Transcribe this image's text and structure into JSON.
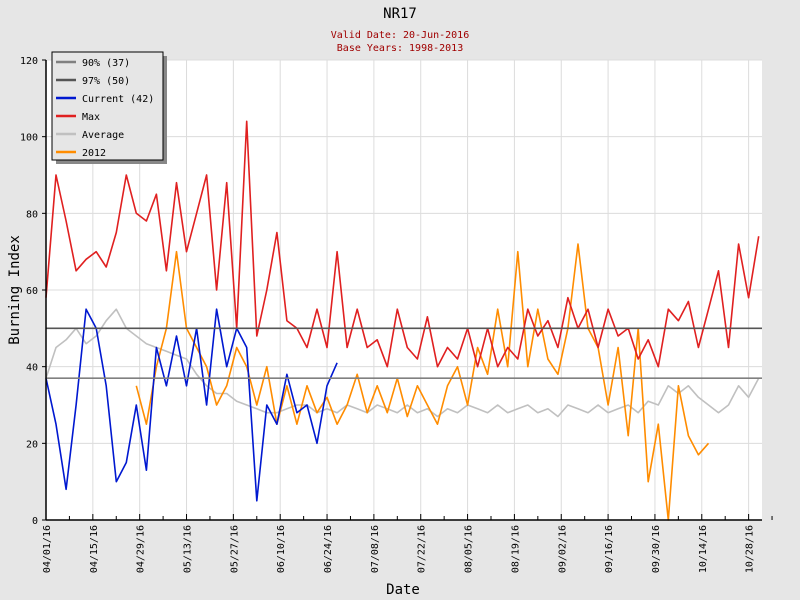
{
  "chart_data": {
    "type": "line",
    "title": "NR17",
    "subtitle_lines": [
      "Valid Date: 20-Jun-2016",
      "Base Years: 1998-2013"
    ],
    "xlabel": "Date",
    "ylabel": "Burning Index",
    "ylim": [
      0,
      120
    ],
    "yticks": [
      0,
      20,
      40,
      60,
      80,
      100,
      120
    ],
    "x_start": "04/01/16",
    "x_range_days": [
      0,
      214
    ],
    "xticks": [
      {
        "day": 0,
        "label": "04/01/16"
      },
      {
        "day": 14,
        "label": "04/15/16"
      },
      {
        "day": 28,
        "label": "04/29/16"
      },
      {
        "day": 42,
        "label": "05/13/16"
      },
      {
        "day": 56,
        "label": "05/27/16"
      },
      {
        "day": 70,
        "label": "06/10/16"
      },
      {
        "day": 84,
        "label": "06/24/16"
      },
      {
        "day": 98,
        "label": "07/08/16"
      },
      {
        "day": 112,
        "label": "07/22/16"
      },
      {
        "day": 126,
        "label": "08/05/16"
      },
      {
        "day": 140,
        "label": "08/19/16"
      },
      {
        "day": 154,
        "label": "09/02/16"
      },
      {
        "day": 168,
        "label": "09/16/16"
      },
      {
        "day": 182,
        "label": "09/30/16"
      },
      {
        "day": 196,
        "label": "10/14/16"
      },
      {
        "day": 210,
        "label": "10/28/16"
      }
    ],
    "grid": true,
    "legend_position": "top-left",
    "thresholds": [
      {
        "name": "90% (37)",
        "value": 37,
        "color": "#808080"
      },
      {
        "name": "97% (50)",
        "value": 50,
        "color": "#555555"
      }
    ],
    "series": [
      {
        "name": "Max",
        "color": "#e02020",
        "start_day": 0,
        "step_days": 3,
        "values": [
          58,
          90,
          78,
          65,
          68,
          70,
          66,
          75,
          90,
          80,
          78,
          85,
          65,
          88,
          70,
          80,
          90,
          60,
          88,
          50,
          104,
          48,
          60,
          75,
          52,
          50,
          45,
          55,
          45,
          70,
          45,
          55,
          45,
          47,
          40,
          55,
          45,
          42,
          53,
          40,
          45,
          42,
          50,
          40,
          50,
          40,
          45,
          42,
          55,
          48,
          52,
          45,
          58,
          50,
          55,
          45,
          55,
          48,
          50,
          42,
          47,
          40,
          55,
          52,
          57,
          45,
          55,
          65,
          45,
          72,
          58,
          74
        ]
      },
      {
        "name": "Average",
        "color": "#c0c0c0",
        "start_day": 0,
        "step_days": 3,
        "values": [
          37,
          45,
          47,
          50,
          46,
          48,
          52,
          55,
          50,
          48,
          46,
          45,
          44,
          43,
          42,
          38,
          35,
          33,
          33,
          31,
          30,
          29,
          28,
          28,
          29,
          30,
          30,
          28,
          29,
          28,
          30,
          29,
          28,
          30,
          29,
          28,
          30,
          28,
          29,
          27,
          29,
          28,
          30,
          29,
          28,
          30,
          28,
          29,
          30,
          28,
          29,
          27,
          30,
          29,
          28,
          30,
          28,
          29,
          30,
          28,
          31,
          30,
          35,
          33,
          35,
          32,
          30,
          28,
          30,
          35,
          32,
          37
        ]
      },
      {
        "name": "2012",
        "color": "#ff8c00",
        "start_day": 27,
        "step_days": 3,
        "values": [
          35,
          25,
          40,
          50,
          70,
          50,
          45,
          40,
          30,
          35,
          45,
          40,
          30,
          40,
          25,
          35,
          25,
          35,
          28,
          32,
          25,
          30,
          38,
          28,
          35,
          28,
          37,
          27,
          35,
          30,
          25,
          35,
          40,
          30,
          45,
          38,
          55,
          40,
          70,
          40,
          55,
          42,
          38,
          50,
          72,
          50,
          45,
          30,
          45,
          22,
          50,
          10,
          25,
          0,
          35,
          22,
          17,
          20
        ]
      },
      {
        "name": "Current (42)",
        "color": "#0018d0",
        "start_day": 0,
        "step_days": 3,
        "values": [
          37,
          25,
          8,
          30,
          55,
          50,
          35,
          10,
          15,
          30,
          13,
          45,
          35,
          48,
          35,
          50,
          30,
          55,
          40,
          50,
          45,
          5,
          30,
          25,
          38,
          28,
          30,
          20,
          35,
          41
        ]
      }
    ]
  }
}
